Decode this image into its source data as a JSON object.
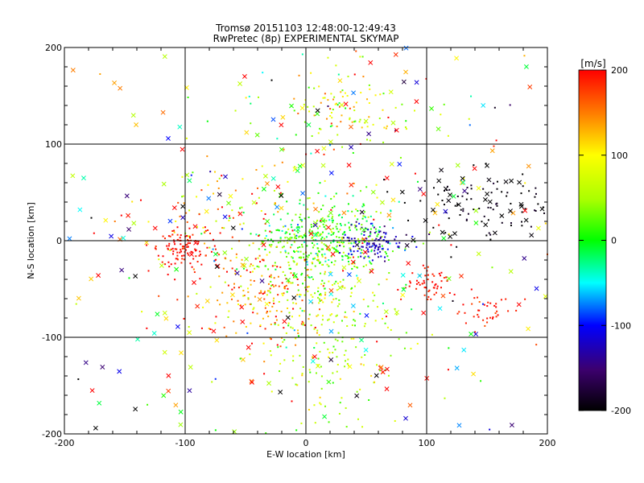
{
  "chart_data": {
    "type": "scatter",
    "title": "Tromsø 20151103 12:48:00-12:49:43",
    "subtitle": "RwPretec (8p) EXPERIMENTAL SKYMAP",
    "xlabel": "E-W location [km]",
    "ylabel": "N-S location [km]",
    "xlim": [
      -200,
      200
    ],
    "ylim": [
      -200,
      200
    ],
    "xticks": [
      "-200",
      "-100",
      "0",
      "100",
      "200"
    ],
    "yticks": [
      "-200",
      "-100",
      "0",
      "100",
      "200"
    ],
    "grid": true,
    "colorbar": {
      "label": "[m/s]",
      "range": [
        -200,
        200
      ],
      "ticks": [
        "200",
        "100",
        "0",
        "-100",
        "-200"
      ]
    },
    "clusters": [
      {
        "cx": 15,
        "cy": 0,
        "sx": 28,
        "sy": 22,
        "n": 420,
        "vmean": 20,
        "vsd": 35,
        "marker": "dot"
      },
      {
        "cx": 55,
        "cy": -2,
        "sx": 14,
        "sy": 9,
        "n": 110,
        "vmean": -120,
        "vsd": 25,
        "marker": "dot"
      },
      {
        "cx": -100,
        "cy": -8,
        "sx": 14,
        "sy": 10,
        "n": 110,
        "vmean": 195,
        "vsd": 10,
        "marker": "dot"
      },
      {
        "cx": -35,
        "cy": -55,
        "sx": 25,
        "sy": 25,
        "n": 170,
        "vmean": 150,
        "vsd": 45,
        "marker": "dot"
      },
      {
        "cx": 15,
        "cy": -95,
        "sx": 30,
        "sy": 45,
        "n": 230,
        "vmean": 55,
        "vsd": 35,
        "marker": "dot"
      },
      {
        "cx": 100,
        "cy": -45,
        "sx": 10,
        "sy": 8,
        "n": 55,
        "vmean": 195,
        "vsd": 10,
        "marker": "dot"
      },
      {
        "cx": 150,
        "cy": -70,
        "sx": 15,
        "sy": 10,
        "n": 40,
        "vmean": 195,
        "vsd": 10,
        "marker": "dot"
      },
      {
        "cx": 145,
        "cy": 35,
        "sx": 28,
        "sy": 16,
        "n": 85,
        "vmean": -195,
        "vsd": 10,
        "marker": "dot"
      },
      {
        "cx": 30,
        "cy": 130,
        "sx": 30,
        "sy": 22,
        "n": 110,
        "vmean": 90,
        "vsd": 60,
        "marker": "dot"
      },
      {
        "cx": -60,
        "cy": 30,
        "sx": 40,
        "sy": 30,
        "n": 90,
        "vmean": 130,
        "vsd": 60,
        "marker": "dot"
      },
      {
        "cx": 0,
        "cy": 0,
        "sx": 120,
        "sy": 110,
        "n": 130,
        "vmean": 50,
        "vsd": 140,
        "marker": "dot"
      },
      {
        "cx": 0,
        "cy": 0,
        "sx": 120,
        "sy": 110,
        "n": 330,
        "vmean": 60,
        "vsd": 150,
        "marker": "cross"
      },
      {
        "cx": 145,
        "cy": 40,
        "sx": 30,
        "sy": 20,
        "n": 30,
        "vmean": -200,
        "vsd": 5,
        "marker": "cross"
      }
    ]
  }
}
